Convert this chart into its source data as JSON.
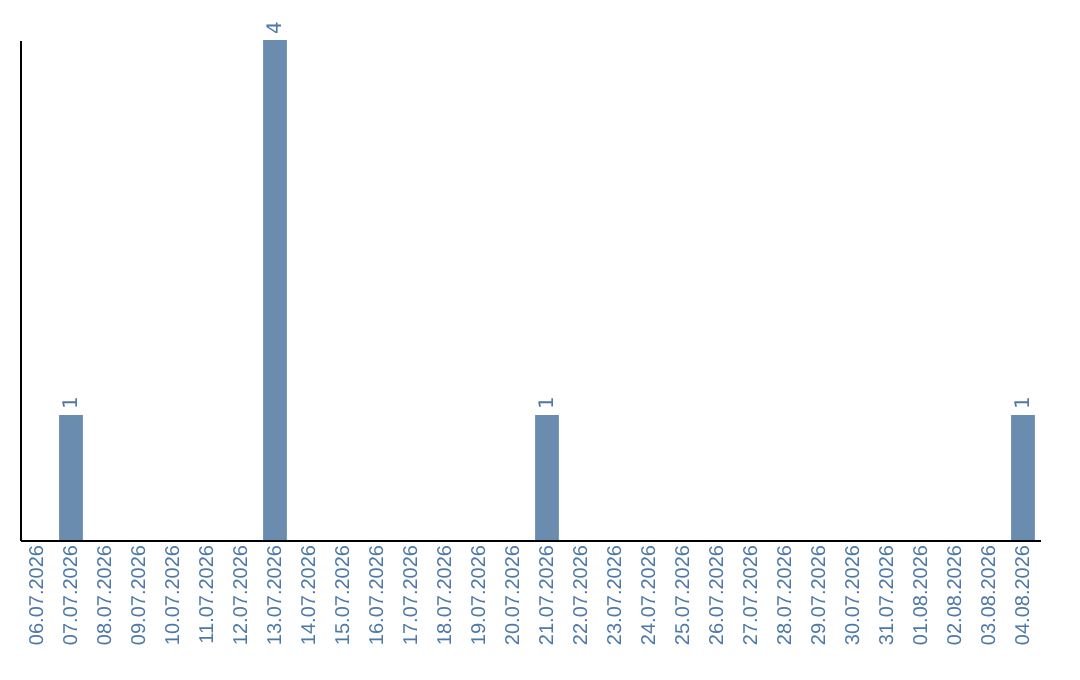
{
  "chart_data": {
    "type": "bar",
    "categories": [
      "06.07.2026",
      "07.07.2026",
      "08.07.2026",
      "09.07.2026",
      "10.07.2026",
      "11.07.2026",
      "12.07.2026",
      "13.07.2026",
      "14.07.2026",
      "15.07.2026",
      "16.07.2026",
      "17.07.2026",
      "18.07.2026",
      "19.07.2026",
      "20.07.2026",
      "21.07.2026",
      "22.07.2026",
      "23.07.2026",
      "24.07.2026",
      "25.07.2026",
      "26.07.2026",
      "27.07.2026",
      "28.07.2026",
      "29.07.2026",
      "30.07.2026",
      "31.07.2026",
      "01.08.2026",
      "02.08.2026",
      "03.08.2026",
      "04.08.2026"
    ],
    "values": [
      0,
      1,
      0,
      0,
      0,
      0,
      0,
      4,
      0,
      0,
      0,
      0,
      0,
      0,
      0,
      1,
      0,
      0,
      0,
      0,
      0,
      0,
      0,
      0,
      0,
      0,
      0,
      0,
      0,
      1
    ],
    "value_labels": [
      null,
      "1",
      null,
      null,
      null,
      null,
      null,
      "4",
      null,
      null,
      null,
      null,
      null,
      null,
      null,
      "1",
      null,
      null,
      null,
      null,
      null,
      null,
      null,
      null,
      null,
      null,
      null,
      null,
      null,
      "1"
    ],
    "color": "#6a8caf",
    "tick_labels": "x",
    "grid": false
  }
}
